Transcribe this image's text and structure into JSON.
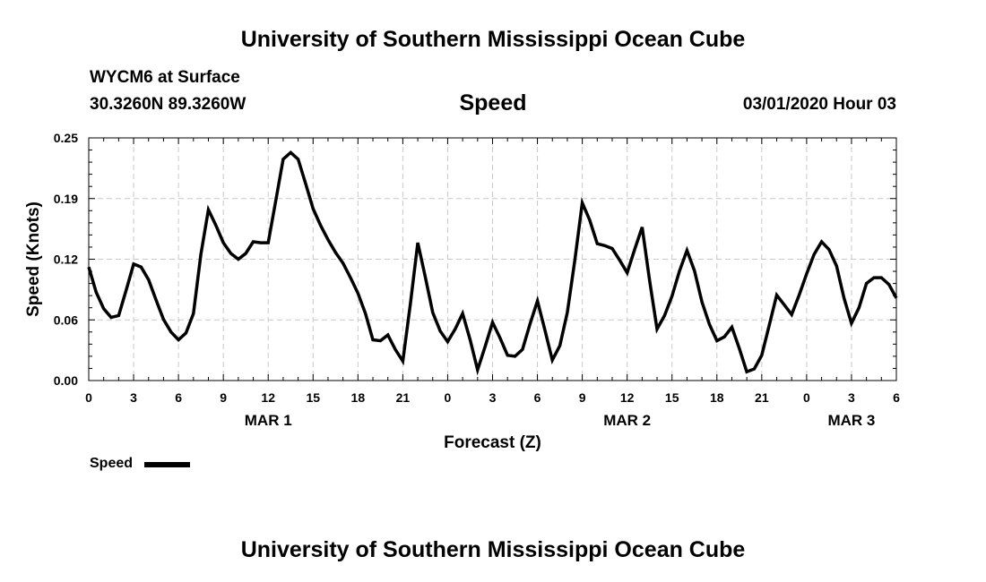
{
  "header": {
    "title": "University of Southern Mississippi Ocean Cube",
    "station": "WYCM6 at Surface",
    "coords": "30.3260N 89.3260W",
    "timestamp": "03/01/2020 Hour 03"
  },
  "footer": {
    "title": "University of Southern Mississippi Ocean Cube"
  },
  "legend": {
    "label": "Speed"
  },
  "chart_data": {
    "type": "line",
    "title": "Speed",
    "xlabel": "Forecast (Z)",
    "ylabel": "Speed (Knots)",
    "xlim": [
      0,
      54
    ],
    "ylim": [
      0,
      0.25
    ],
    "grid": true,
    "line_color": "#000000",
    "yticks": [
      "0.00",
      "0.06",
      "0.12",
      "0.19",
      "0.25"
    ],
    "ytick_values": [
      0,
      0.0625,
      0.125,
      0.1875,
      0.25
    ],
    "xticks": [
      "0",
      "3",
      "6",
      "9",
      "12",
      "15",
      "18",
      "21",
      "0",
      "3",
      "6",
      "9",
      "12",
      "15",
      "18",
      "21",
      "0",
      "3",
      "6"
    ],
    "xtick_values": [
      0,
      3,
      6,
      9,
      12,
      15,
      18,
      21,
      24,
      27,
      30,
      33,
      36,
      39,
      42,
      45,
      48,
      51,
      54
    ],
    "date_labels": [
      {
        "label": "MAR 1",
        "x": 12
      },
      {
        "label": "MAR 2",
        "x": 36
      },
      {
        "label": "MAR 3",
        "x": 51
      }
    ],
    "series": [
      {
        "name": "Speed",
        "x": [
          0,
          0.5,
          1,
          1.5,
          2,
          2.5,
          3,
          3.5,
          4,
          4.5,
          5,
          5.5,
          6,
          6.5,
          7,
          7.5,
          8,
          8.5,
          9,
          9.5,
          10,
          10.5,
          11,
          11.5,
          12,
          12.5,
          13,
          13.5,
          14,
          14.5,
          15,
          15.5,
          16,
          16.5,
          17,
          17.5,
          18,
          18.5,
          19,
          19.5,
          20,
          20.5,
          21,
          21.5,
          22,
          22.5,
          23,
          23.5,
          24,
          24.5,
          25,
          25.5,
          26,
          26.5,
          27,
          27.5,
          28,
          28.5,
          29,
          29.5,
          30,
          30.5,
          31,
          31.5,
          32,
          32.5,
          33,
          33.5,
          34,
          34.5,
          35,
          35.5,
          36,
          36.5,
          37,
          37.5,
          38,
          38.5,
          39,
          39.5,
          40,
          40.5,
          41,
          41.5,
          42,
          42.5,
          43,
          43.5,
          44,
          44.5,
          45,
          45.5,
          46,
          46.5,
          47,
          47.5,
          48,
          48.5,
          49,
          49.5,
          50,
          50.5,
          51,
          51.5,
          52,
          52.5,
          53,
          53.5,
          54
        ],
        "values": [
          0.117,
          0.091,
          0.074,
          0.065,
          0.067,
          0.093,
          0.12,
          0.117,
          0.104,
          0.083,
          0.063,
          0.05,
          0.042,
          0.049,
          0.069,
          0.13,
          0.176,
          0.16,
          0.142,
          0.131,
          0.125,
          0.131,
          0.143,
          0.142,
          0.142,
          0.185,
          0.228,
          0.235,
          0.228,
          0.203,
          0.177,
          0.16,
          0.145,
          0.132,
          0.121,
          0.106,
          0.09,
          0.069,
          0.042,
          0.041,
          0.047,
          0.032,
          0.02,
          0.078,
          0.142,
          0.107,
          0.07,
          0.051,
          0.04,
          0.053,
          0.069,
          0.042,
          0.011,
          0.035,
          0.06,
          0.044,
          0.026,
          0.025,
          0.032,
          0.058,
          0.082,
          0.052,
          0.021,
          0.036,
          0.07,
          0.124,
          0.183,
          0.165,
          0.141,
          0.139,
          0.136,
          0.124,
          0.111,
          0.135,
          0.158,
          0.103,
          0.053,
          0.067,
          0.087,
          0.113,
          0.134,
          0.113,
          0.081,
          0.058,
          0.041,
          0.045,
          0.055,
          0.033,
          0.009,
          0.012,
          0.026,
          0.057,
          0.088,
          0.078,
          0.068,
          0.088,
          0.11,
          0.13,
          0.143,
          0.135,
          0.118,
          0.085,
          0.059,
          0.075,
          0.1,
          0.106,
          0.106,
          0.099,
          0.085
        ]
      }
    ]
  }
}
